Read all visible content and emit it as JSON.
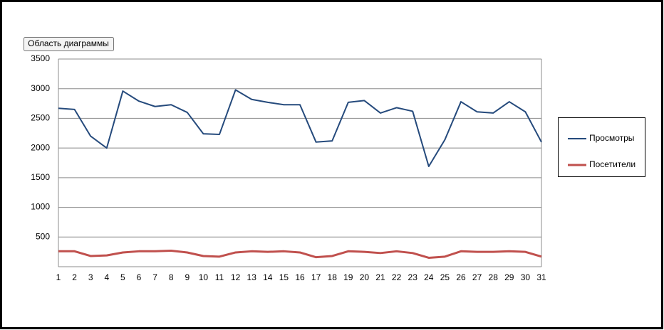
{
  "tooltip": "Область диаграммы",
  "chart_data": {
    "type": "line",
    "categories": [
      "1",
      "2",
      "3",
      "4",
      "5",
      "6",
      "7",
      "8",
      "9",
      "10",
      "11",
      "12",
      "13",
      "14",
      "15",
      "16",
      "17",
      "18",
      "19",
      "20",
      "21",
      "22",
      "23",
      "24",
      "25",
      "26",
      "27",
      "28",
      "29",
      "30",
      "31"
    ],
    "series": [
      {
        "name": "Просмотры",
        "color": "#254a7c",
        "values": [
          2670,
          2650,
          2200,
          2000,
          2960,
          2790,
          2700,
          2730,
          2600,
          2240,
          2230,
          2980,
          2820,
          2770,
          2730,
          2730,
          2100,
          2120,
          2770,
          2800,
          2590,
          2680,
          2620,
          1690,
          2140,
          2780,
          2610,
          2590,
          2780,
          2610,
          2100
        ]
      },
      {
        "name": "Посетители",
        "color": "#c0504d",
        "values": [
          260,
          260,
          180,
          190,
          240,
          260,
          260,
          270,
          240,
          180,
          170,
          240,
          260,
          250,
          260,
          240,
          160,
          180,
          260,
          250,
          230,
          260,
          230,
          150,
          170,
          260,
          250,
          250,
          260,
          250,
          170
        ]
      }
    ],
    "ylim": [
      0,
      3500
    ],
    "yticks": [
      500,
      1000,
      1500,
      2000,
      2500,
      3000,
      3500
    ],
    "grid": true,
    "legend": "right"
  }
}
